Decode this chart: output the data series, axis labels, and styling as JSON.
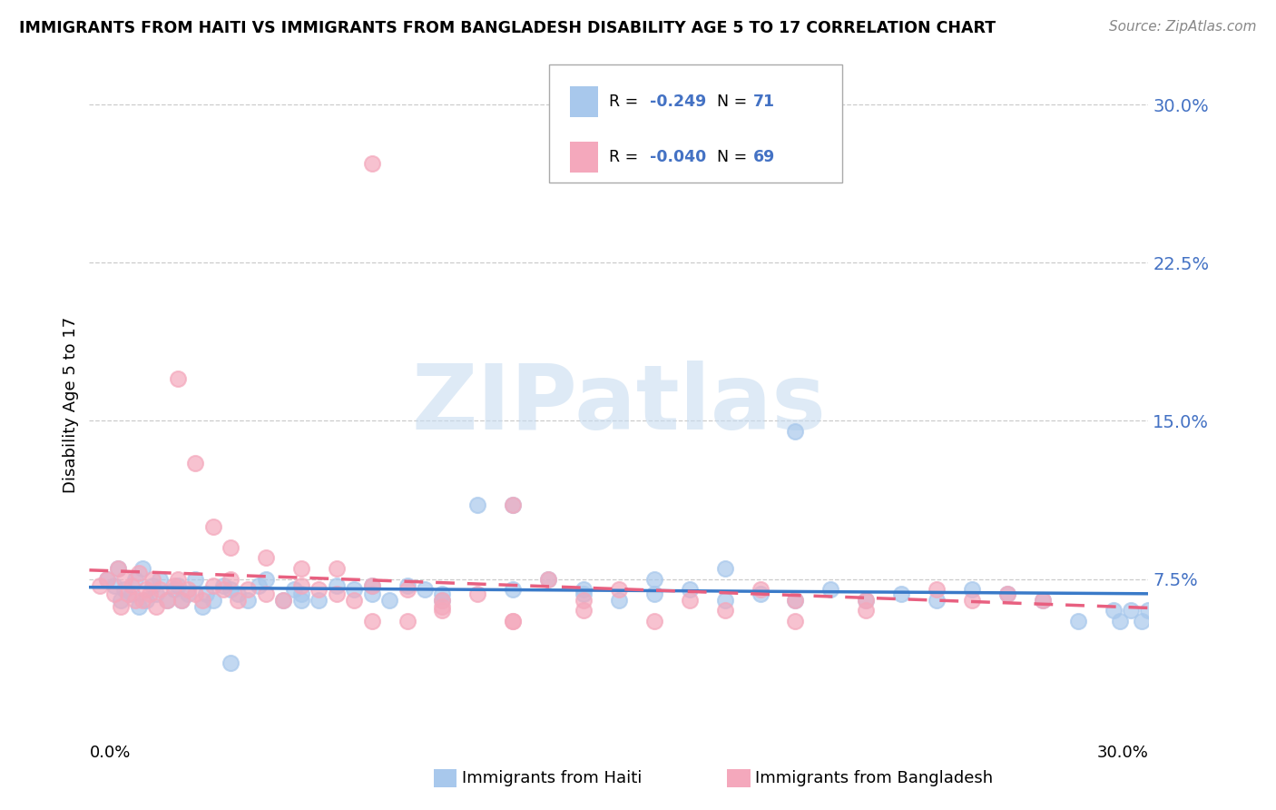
{
  "title": "IMMIGRANTS FROM HAITI VS IMMIGRANTS FROM BANGLADESH DISABILITY AGE 5 TO 17 CORRELATION CHART",
  "source": "Source: ZipAtlas.com",
  "ylabel": "Disability Age 5 to 17",
  "x_min": 0.0,
  "x_max": 0.3,
  "y_min": 0.0,
  "y_max": 0.315,
  "yticks": [
    0.075,
    0.15,
    0.225,
    0.3
  ],
  "ytick_labels": [
    "7.5%",
    "15.0%",
    "22.5%",
    "30.0%"
  ],
  "legend_haiti_R": "-0.249",
  "legend_haiti_N": "71",
  "legend_bangladesh_R": "-0.040",
  "legend_bangladesh_N": "69",
  "haiti_color": "#A8C8EC",
  "bangladesh_color": "#F4A8BC",
  "haiti_line_color": "#3A7AC8",
  "bangladesh_line_color": "#E86080",
  "watermark_color": "#D8E8F4",
  "watermark_text": "ZIPatlas",
  "haiti_x": [
    0.005,
    0.007,
    0.008,
    0.009,
    0.01,
    0.012,
    0.013,
    0.014,
    0.015,
    0.016,
    0.018,
    0.019,
    0.02,
    0.022,
    0.024,
    0.025,
    0.026,
    0.028,
    0.03,
    0.032,
    0.033,
    0.035,
    0.038,
    0.04,
    0.042,
    0.045,
    0.048,
    0.05,
    0.055,
    0.058,
    0.06,
    0.065,
    0.07,
    0.075,
    0.08,
    0.085,
    0.09,
    0.095,
    0.1,
    0.11,
    0.12,
    0.13,
    0.14,
    0.15,
    0.16,
    0.17,
    0.18,
    0.19,
    0.2,
    0.21,
    0.22,
    0.23,
    0.24,
    0.25,
    0.26,
    0.27,
    0.28,
    0.29,
    0.292,
    0.295,
    0.298,
    0.3,
    0.2,
    0.16,
    0.18,
    0.1,
    0.12,
    0.14,
    0.06,
    0.08,
    0.04
  ],
  "haiti_y": [
    0.075,
    0.072,
    0.08,
    0.065,
    0.07,
    0.068,
    0.075,
    0.062,
    0.08,
    0.065,
    0.072,
    0.068,
    0.075,
    0.065,
    0.07,
    0.072,
    0.065,
    0.068,
    0.075,
    0.062,
    0.068,
    0.065,
    0.072,
    0.07,
    0.068,
    0.065,
    0.072,
    0.075,
    0.065,
    0.07,
    0.068,
    0.065,
    0.072,
    0.07,
    0.068,
    0.065,
    0.072,
    0.07,
    0.068,
    0.11,
    0.11,
    0.075,
    0.07,
    0.065,
    0.068,
    0.07,
    0.065,
    0.068,
    0.065,
    0.07,
    0.065,
    0.068,
    0.065,
    0.07,
    0.068,
    0.065,
    0.055,
    0.06,
    0.055,
    0.06,
    0.055,
    0.06,
    0.145,
    0.075,
    0.08,
    0.065,
    0.07,
    0.068,
    0.065,
    0.072,
    0.035
  ],
  "bangladesh_x": [
    0.003,
    0.005,
    0.007,
    0.008,
    0.009,
    0.01,
    0.011,
    0.012,
    0.013,
    0.014,
    0.015,
    0.016,
    0.017,
    0.018,
    0.019,
    0.02,
    0.022,
    0.024,
    0.025,
    0.026,
    0.028,
    0.03,
    0.032,
    0.035,
    0.038,
    0.04,
    0.042,
    0.045,
    0.05,
    0.055,
    0.06,
    0.065,
    0.07,
    0.075,
    0.08,
    0.09,
    0.1,
    0.11,
    0.12,
    0.13,
    0.14,
    0.15,
    0.17,
    0.19,
    0.2,
    0.22,
    0.24,
    0.25,
    0.26,
    0.27,
    0.025,
    0.03,
    0.035,
    0.04,
    0.05,
    0.06,
    0.07,
    0.08,
    0.09,
    0.1,
    0.12,
    0.14,
    0.16,
    0.18,
    0.2,
    0.22,
    0.08,
    0.1,
    0.12
  ],
  "bangladesh_y": [
    0.072,
    0.075,
    0.068,
    0.08,
    0.062,
    0.075,
    0.068,
    0.072,
    0.065,
    0.078,
    0.065,
    0.07,
    0.068,
    0.075,
    0.062,
    0.07,
    0.065,
    0.072,
    0.075,
    0.065,
    0.07,
    0.068,
    0.065,
    0.072,
    0.07,
    0.075,
    0.065,
    0.07,
    0.068,
    0.065,
    0.072,
    0.07,
    0.068,
    0.065,
    0.072,
    0.07,
    0.065,
    0.068,
    0.11,
    0.075,
    0.065,
    0.07,
    0.065,
    0.07,
    0.065,
    0.065,
    0.07,
    0.065,
    0.068,
    0.065,
    0.17,
    0.13,
    0.1,
    0.09,
    0.085,
    0.08,
    0.08,
    0.055,
    0.055,
    0.06,
    0.055,
    0.06,
    0.055,
    0.06,
    0.055,
    0.06,
    0.272,
    0.062,
    0.055
  ]
}
